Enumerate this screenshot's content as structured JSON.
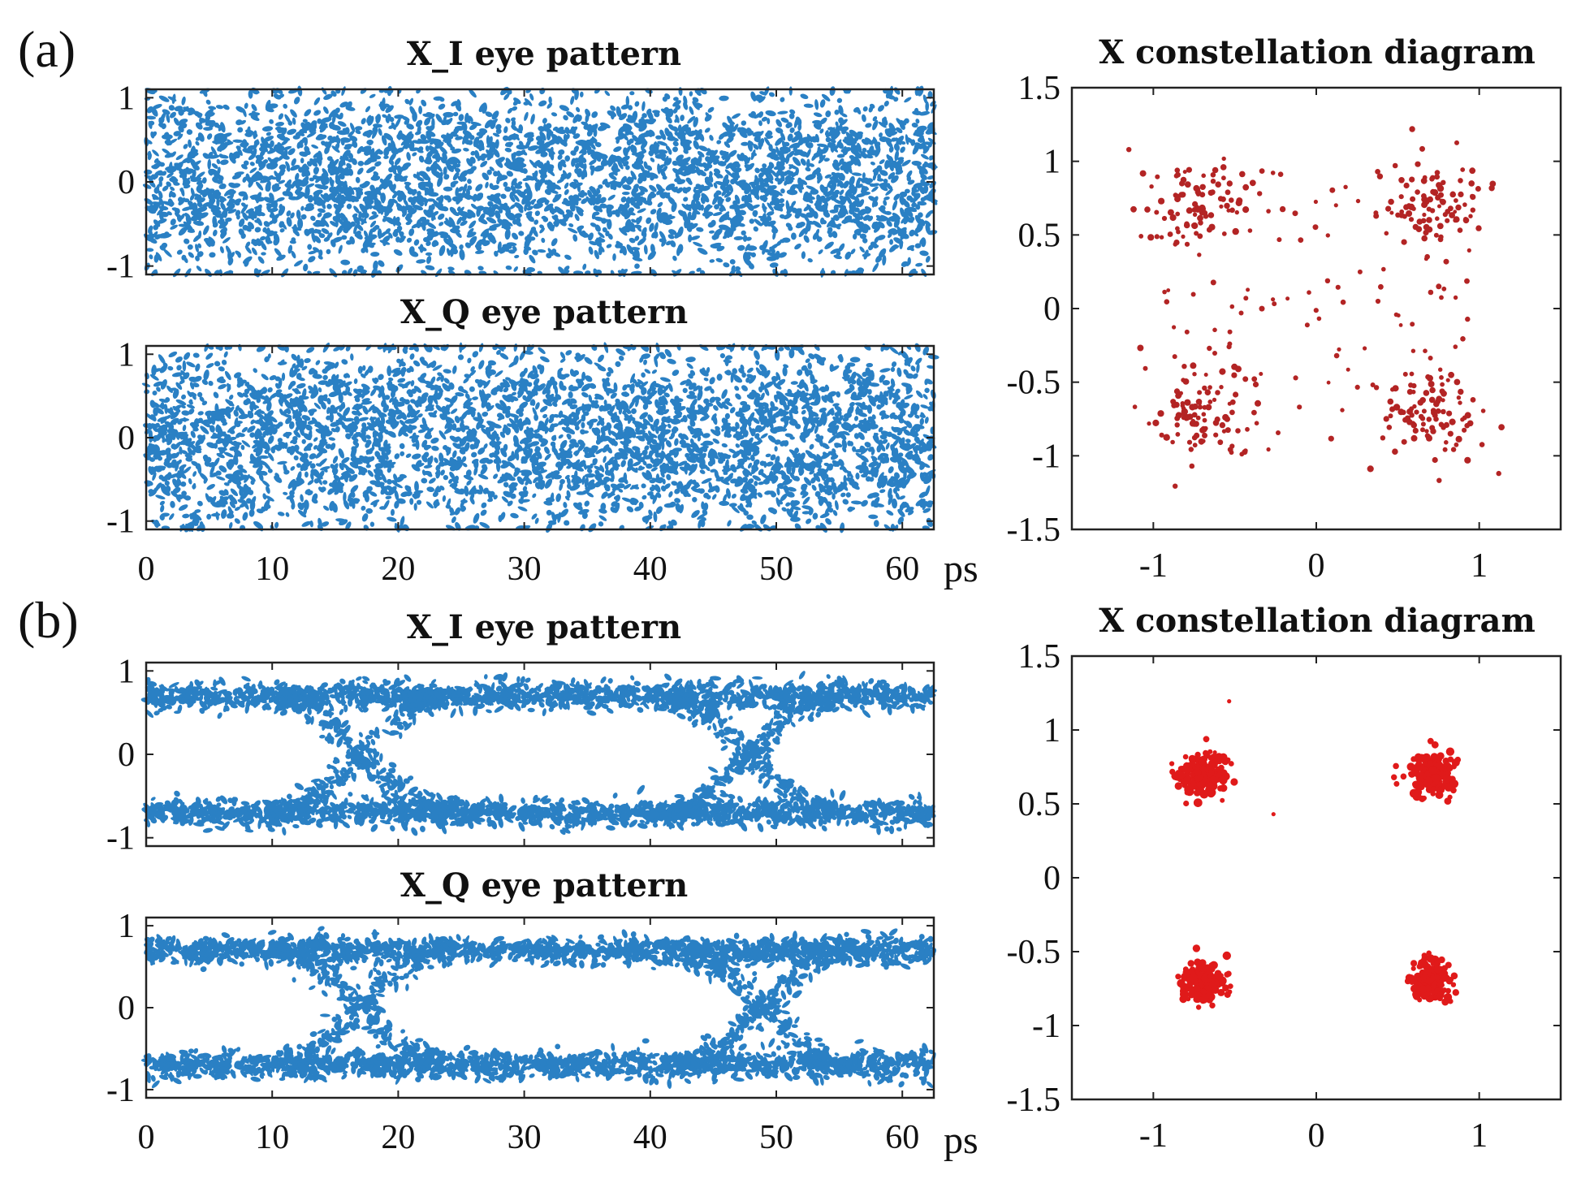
{
  "figure": {
    "panel_a_label": "(a)",
    "panel_b_label": "(b)",
    "x_unit": "ps"
  },
  "colors": {
    "eye": "#2a80c4",
    "constellation_a": "#b32424",
    "constellation_b": "#e01a1a",
    "frame": "#222222"
  },
  "chart_data": [
    {
      "id": "a_xi",
      "type": "scatter",
      "title": "X_I eye pattern",
      "xlim": [
        0,
        62.5
      ],
      "ylim": [
        -1.1,
        1.1
      ],
      "xticks": [
        0,
        10,
        20,
        30,
        40,
        50,
        60
      ],
      "yticks": [
        1,
        0,
        -1
      ],
      "style": "noisy-eye",
      "signal_level": 0.7,
      "show_xtick_labels": false
    },
    {
      "id": "a_xq",
      "type": "scatter",
      "title": "X_Q eye pattern",
      "xlim": [
        0,
        62.5
      ],
      "ylim": [
        -1.1,
        1.1
      ],
      "xticks": [
        0,
        10,
        20,
        30,
        40,
        50,
        60
      ],
      "yticks": [
        1,
        0,
        -1
      ],
      "style": "noisy-eye",
      "signal_level": 0.7,
      "show_xtick_labels": true
    },
    {
      "id": "a_const",
      "type": "scatter",
      "title": "X constellation diagram",
      "xlim": [
        -1.5,
        1.5
      ],
      "ylim": [
        -1.5,
        1.5
      ],
      "xticks": [
        -1,
        0,
        1
      ],
      "yticks": [
        1.5,
        1,
        0.5,
        0,
        -0.5,
        -1,
        -1.5
      ],
      "style": "constellation",
      "cluster_centers": [
        [
          -0.7,
          0.7
        ],
        [
          0.7,
          0.7
        ],
        [
          -0.7,
          -0.7
        ],
        [
          0.7,
          -0.7
        ]
      ],
      "spread": "wide"
    },
    {
      "id": "b_xi",
      "type": "scatter",
      "title": "X_I eye pattern",
      "xlim": [
        0,
        62.5
      ],
      "ylim": [
        -1.1,
        1.1
      ],
      "xticks": [
        0,
        10,
        20,
        30,
        40,
        50,
        60
      ],
      "yticks": [
        1,
        0,
        -1
      ],
      "style": "open-eye",
      "signal_level": 0.7,
      "crossings": [
        17,
        48
      ],
      "show_xtick_labels": false
    },
    {
      "id": "b_xq",
      "type": "scatter",
      "title": "X_Q eye pattern",
      "xlim": [
        0,
        62.5
      ],
      "ylim": [
        -1.1,
        1.1
      ],
      "xticks": [
        0,
        10,
        20,
        30,
        40,
        50,
        60
      ],
      "yticks": [
        1,
        0,
        -1
      ],
      "style": "open-eye",
      "signal_level": 0.7,
      "crossings": [
        17,
        49
      ],
      "show_xtick_labels": true
    },
    {
      "id": "b_const",
      "type": "scatter",
      "title": "X constellation diagram",
      "xlim": [
        -1.5,
        1.5
      ],
      "ylim": [
        -1.5,
        1.5
      ],
      "xticks": [
        -1,
        0,
        1
      ],
      "yticks": [
        1.5,
        1,
        0.5,
        0,
        -0.5,
        -1,
        -1.5
      ],
      "style": "constellation",
      "cluster_centers": [
        [
          -0.7,
          0.7
        ],
        [
          0.7,
          0.7
        ],
        [
          -0.7,
          -0.7
        ],
        [
          0.7,
          -0.7
        ]
      ],
      "spread": "tight"
    }
  ]
}
